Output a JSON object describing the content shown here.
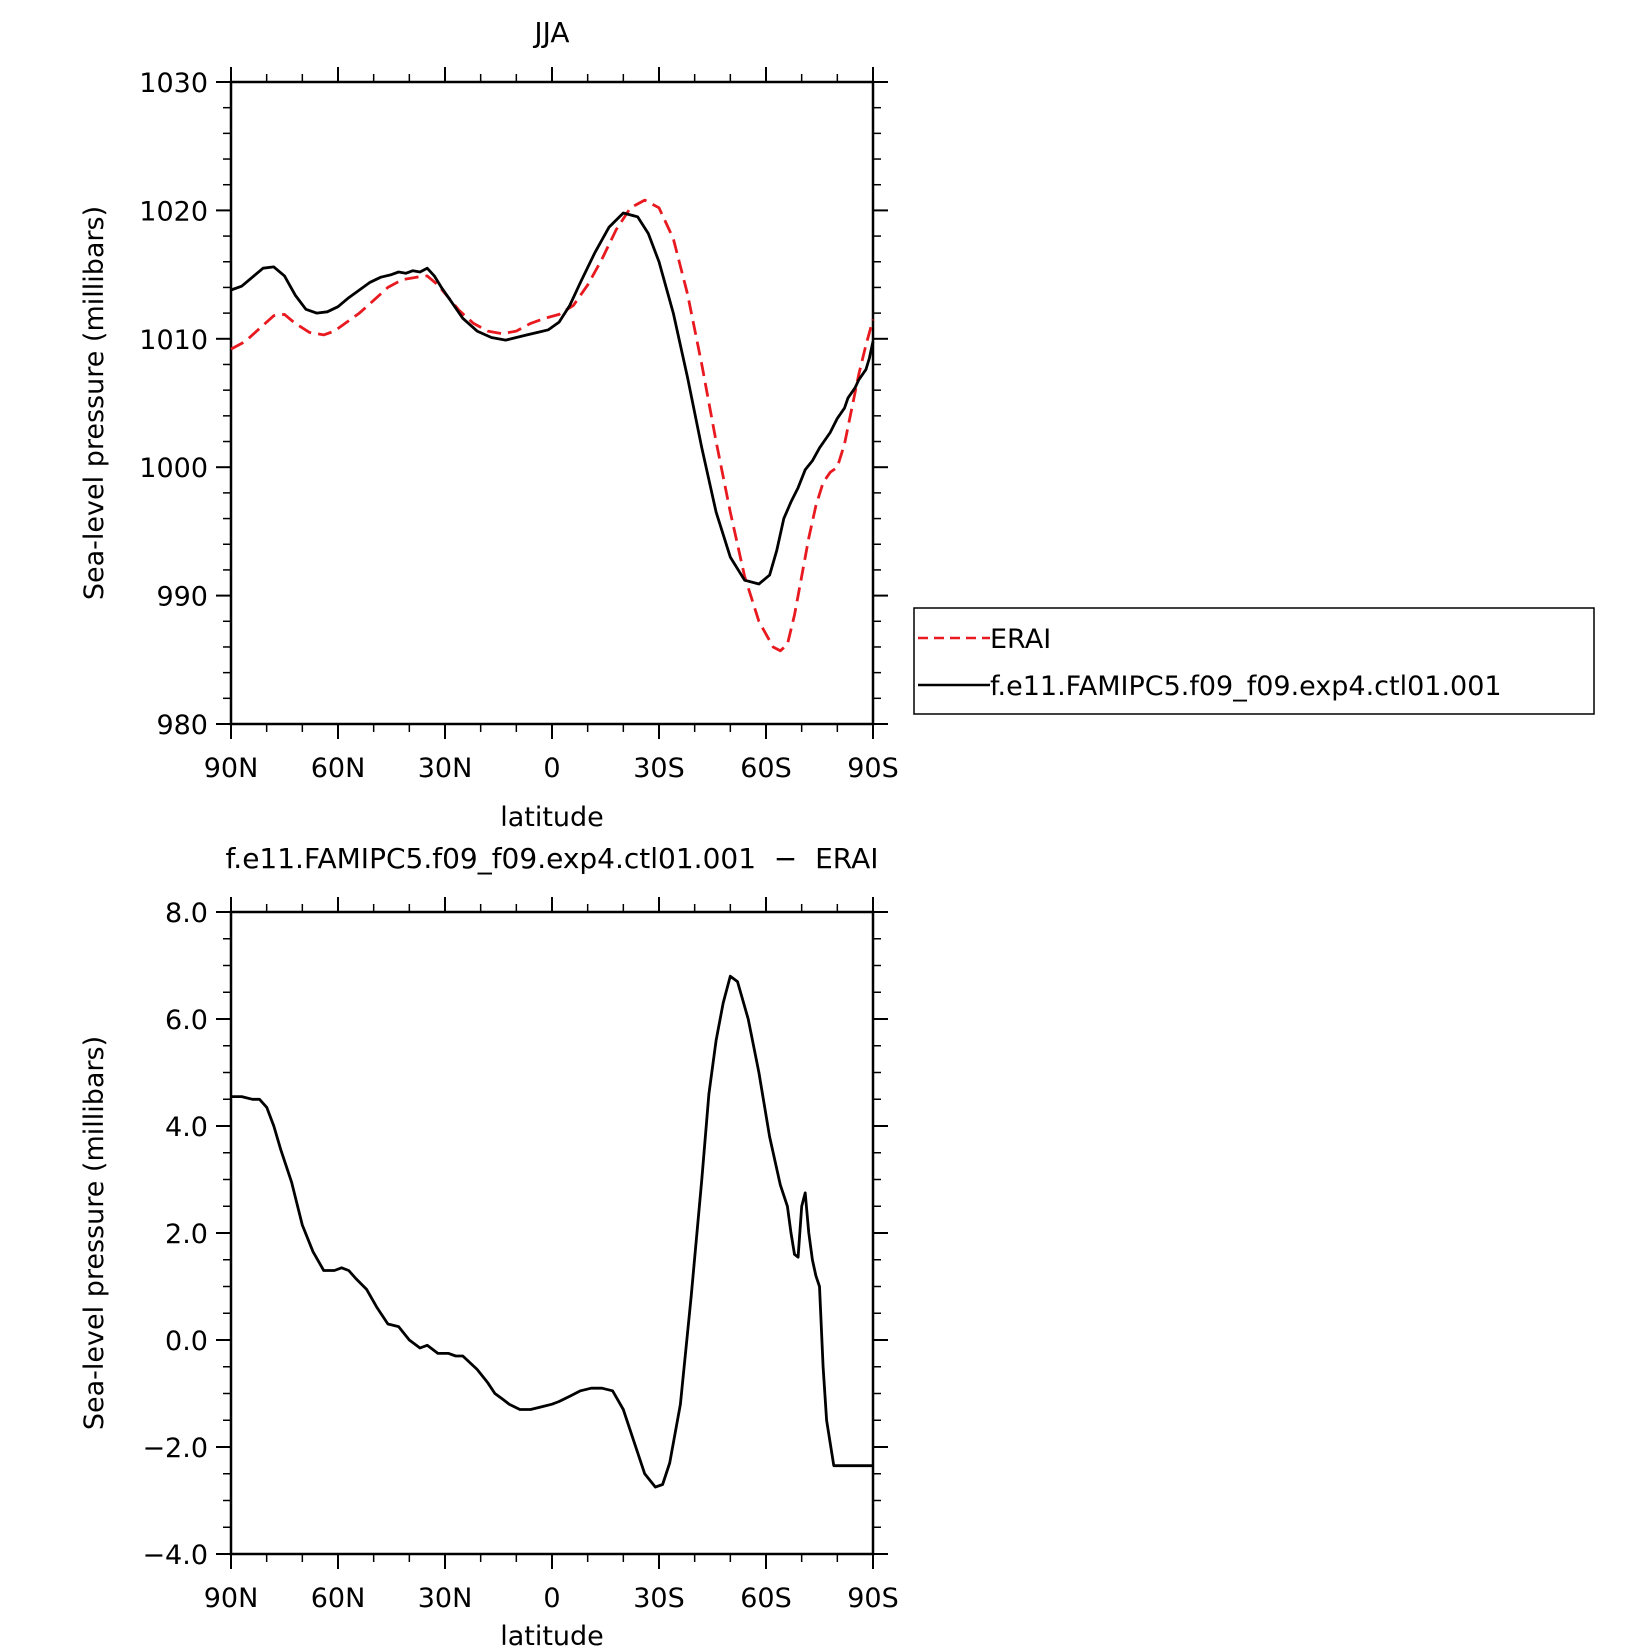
{
  "chart_data": [
    {
      "type": "line",
      "title": "JJA",
      "xlabel": "latitude",
      "ylabel": "Sea-level pressure (millibars)",
      "xlim": [
        -90,
        90
      ],
      "ylim": [
        980,
        1030
      ],
      "x_direction": "north-to-south",
      "xtick_values": [
        -90,
        -60,
        -30,
        0,
        30,
        60,
        90
      ],
      "xtick_labels": [
        "90N",
        "60N",
        "30N",
        "0",
        "30S",
        "60S",
        "90S"
      ],
      "ytick_values": [
        980,
        990,
        1000,
        1010,
        1020,
        1030
      ],
      "ytick_labels": [
        "980",
        "990",
        "1000",
        "1010",
        "1020",
        "1030"
      ],
      "grid": false,
      "legend_position": "right",
      "series": [
        {
          "name": "ERAI",
          "color": "#e8191f",
          "dash": "dashed",
          "x": [
            -90,
            -86,
            -82,
            -78,
            -75,
            -72,
            -68,
            -64,
            -61,
            -58,
            -54,
            -50,
            -46,
            -42,
            -38,
            -35,
            -32,
            -29,
            -26,
            -22,
            -18,
            -14,
            -10,
            -6,
            -2,
            2,
            6,
            10,
            14,
            18,
            22,
            26,
            30,
            34,
            38,
            42,
            46,
            50,
            54,
            58,
            62,
            64,
            66,
            68,
            70,
            72,
            74,
            76,
            78,
            80,
            82,
            84,
            86,
            88,
            90
          ],
          "y": [
            1009.2,
            1009.8,
            1010.8,
            1011.8,
            1011.9,
            1011.2,
            1010.5,
            1010.3,
            1010.6,
            1011.2,
            1012.0,
            1013.0,
            1014.0,
            1014.6,
            1014.8,
            1014.9,
            1014.2,
            1013.2,
            1012.2,
            1011.2,
            1010.6,
            1010.4,
            1010.6,
            1011.2,
            1011.6,
            1011.9,
            1012.6,
            1014.2,
            1016.2,
            1018.5,
            1020.2,
            1020.8,
            1020.2,
            1017.8,
            1013.5,
            1008.0,
            1002.0,
            996.5,
            991.5,
            988.0,
            986.0,
            985.7,
            986.2,
            988.5,
            991.5,
            994.5,
            997.0,
            998.8,
            999.6,
            1000.0,
            1001.8,
            1004.5,
            1007.2,
            1009.5,
            1011.5
          ]
        },
        {
          "name": "f.e11.FAMIPC5.f09_f09.exp4.ctl01.001",
          "color": "#000000",
          "dash": "solid",
          "x": [
            -90,
            -87,
            -84,
            -81,
            -78,
            -75,
            -72,
            -69,
            -66,
            -63,
            -60,
            -57,
            -54,
            -51,
            -48,
            -45,
            -43,
            -41,
            -39,
            -37,
            -35,
            -33,
            -31,
            -28,
            -25,
            -21,
            -17,
            -13,
            -10,
            -7,
            -4,
            -1,
            2,
            5,
            8,
            12,
            16,
            20,
            24,
            27,
            30,
            34,
            38,
            42,
            46,
            50,
            54,
            58,
            61,
            63,
            65,
            67,
            69,
            71,
            73,
            75,
            78,
            80,
            82,
            83,
            85,
            86,
            88,
            89,
            90
          ],
          "y": [
            1013.8,
            1014.1,
            1014.8,
            1015.5,
            1015.6,
            1014.9,
            1013.4,
            1012.3,
            1012.0,
            1012.1,
            1012.5,
            1013.2,
            1013.8,
            1014.4,
            1014.8,
            1015.0,
            1015.2,
            1015.1,
            1015.3,
            1015.2,
            1015.5,
            1014.9,
            1014.0,
            1012.8,
            1011.6,
            1010.6,
            1010.1,
            1009.9,
            1010.1,
            1010.3,
            1010.5,
            1010.7,
            1011.3,
            1012.6,
            1014.4,
            1016.7,
            1018.7,
            1019.8,
            1019.5,
            1018.2,
            1016.0,
            1012.0,
            1007.0,
            1001.5,
            996.5,
            993.0,
            991.2,
            990.9,
            991.6,
            993.5,
            996.0,
            997.3,
            998.4,
            999.8,
            1000.5,
            1001.5,
            1002.7,
            1003.8,
            1004.6,
            1005.4,
            1006.2,
            1006.8,
            1007.6,
            1008.5,
            1009.8
          ]
        }
      ]
    },
    {
      "type": "line",
      "title": "f.e11.FAMIPC5.f09_f09.exp4.ctl01.001  −  ERAI",
      "xlabel": "latitude",
      "ylabel": "Sea-level pressure (millibars)",
      "xlim": [
        -90,
        90
      ],
      "ylim": [
        -4,
        8
      ],
      "x_direction": "north-to-south",
      "xtick_values": [
        -90,
        -60,
        -30,
        0,
        30,
        60,
        90
      ],
      "xtick_labels": [
        "90N",
        "60N",
        "30N",
        "0",
        "30S",
        "60S",
        "90S"
      ],
      "ytick_values": [
        -4,
        -2,
        0,
        2,
        4,
        6,
        8
      ],
      "ytick_labels": [
        "−4.0",
        "−2.0",
        "0.0",
        "2.0",
        "4.0",
        "6.0",
        "8.0"
      ],
      "grid": false,
      "series": [
        {
          "color": "#000000",
          "dash": "solid",
          "x": [
            -90,
            -87,
            -84,
            -82,
            -80,
            -78,
            -76,
            -73,
            -70,
            -67,
            -64,
            -61,
            -59,
            -57,
            -55,
            -52,
            -49,
            -46,
            -43,
            -40,
            -37,
            -35,
            -32,
            -29,
            -27,
            -25,
            -21,
            -18,
            -16,
            -14,
            -12,
            -9,
            -6,
            -3,
            0,
            2,
            5,
            8,
            11,
            14,
            17,
            20,
            23,
            26,
            29,
            31,
            33,
            36,
            39,
            42,
            44,
            46,
            48,
            50,
            52,
            55,
            58,
            61,
            64,
            66,
            67,
            68,
            69,
            70,
            71,
            72,
            73,
            74,
            75,
            76,
            77,
            79,
            80,
            81,
            82,
            83,
            84,
            85,
            86,
            87,
            88,
            89,
            90
          ],
          "y": [
            4.55,
            4.55,
            4.5,
            4.5,
            4.35,
            4.0,
            3.55,
            2.95,
            2.15,
            1.65,
            1.3,
            1.3,
            1.35,
            1.3,
            1.15,
            0.95,
            0.6,
            0.3,
            0.25,
            0.0,
            -0.15,
            -0.1,
            -0.25,
            -0.25,
            -0.3,
            -0.3,
            -0.55,
            -0.8,
            -1.0,
            -1.1,
            -1.2,
            -1.3,
            -1.3,
            -1.25,
            -1.2,
            -1.15,
            -1.05,
            -0.95,
            -0.9,
            -0.9,
            -0.95,
            -1.3,
            -1.9,
            -2.5,
            -2.75,
            -2.7,
            -2.3,
            -1.2,
            0.8,
            3.0,
            4.6,
            5.6,
            6.3,
            6.8,
            6.7,
            6.0,
            5.0,
            3.8,
            2.9,
            2.5,
            2.0,
            1.6,
            1.55,
            2.5,
            2.75,
            2.0,
            1.5,
            1.2,
            1.0,
            -0.5,
            -1.5,
            -2.35,
            -2.35,
            -2.35,
            -2.35,
            -2.35,
            -2.35,
            -2.35,
            -2.35,
            -2.35,
            -2.35,
            -2.35,
            -2.35
          ]
        }
      ]
    }
  ],
  "legend": {
    "items": [
      {
        "label": "ERAI",
        "color": "#e8191f",
        "dash": "dashed"
      },
      {
        "label": "f.e11.FAMIPC5.f09_f09.exp4.ctl01.001",
        "color": "#000000",
        "dash": "solid"
      }
    ]
  }
}
